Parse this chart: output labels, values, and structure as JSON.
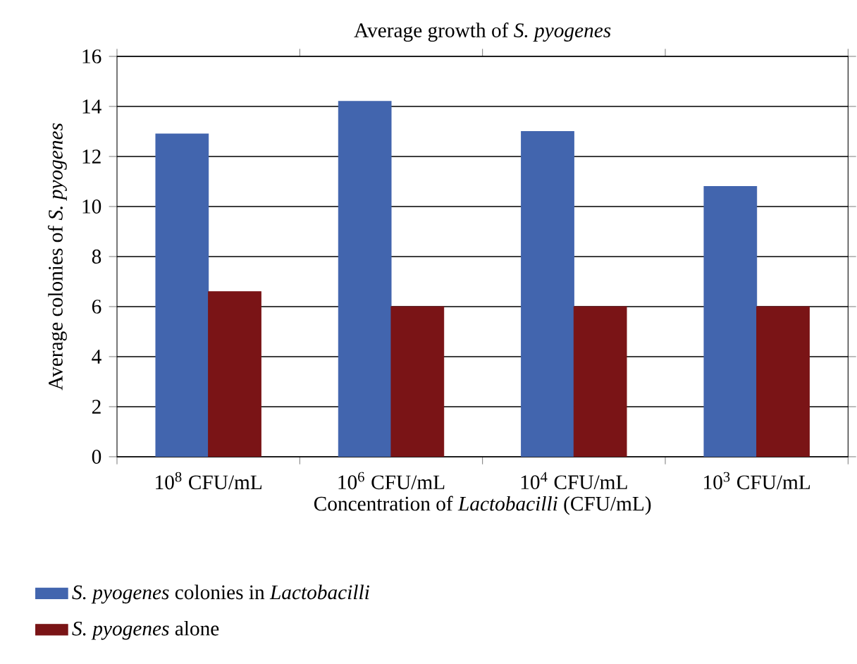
{
  "chart_data": {
    "type": "bar",
    "title": "Average growth of *S. pyogenes*",
    "xlabel": "Concentration of *Lactobacilli* (CFU/mL)",
    "ylabel": "Average colonies of *S. pyogenes*",
    "categories": [
      "10$^{8}$ CFU/mL",
      "10$^{6}$ CFU/mL",
      "10$^{4}$ CFU/mL",
      "10$^{3}$ CFU/mL"
    ],
    "series": [
      {
        "name": "*S. pyogenes* colonies in *Lactobacilli*",
        "color": "#4265ae",
        "values": [
          12.9,
          14.2,
          13.0,
          10.8
        ]
      },
      {
        "name": "*S. pyogenes* alone",
        "color": "#7a1416",
        "values": [
          6.6,
          6.0,
          6.0,
          6.0
        ]
      }
    ],
    "ylim": [
      0,
      16
    ],
    "yticks": [
      0,
      2,
      4,
      6,
      8,
      10,
      12,
      14,
      16
    ],
    "grid": "y",
    "legend": "bottom"
  }
}
